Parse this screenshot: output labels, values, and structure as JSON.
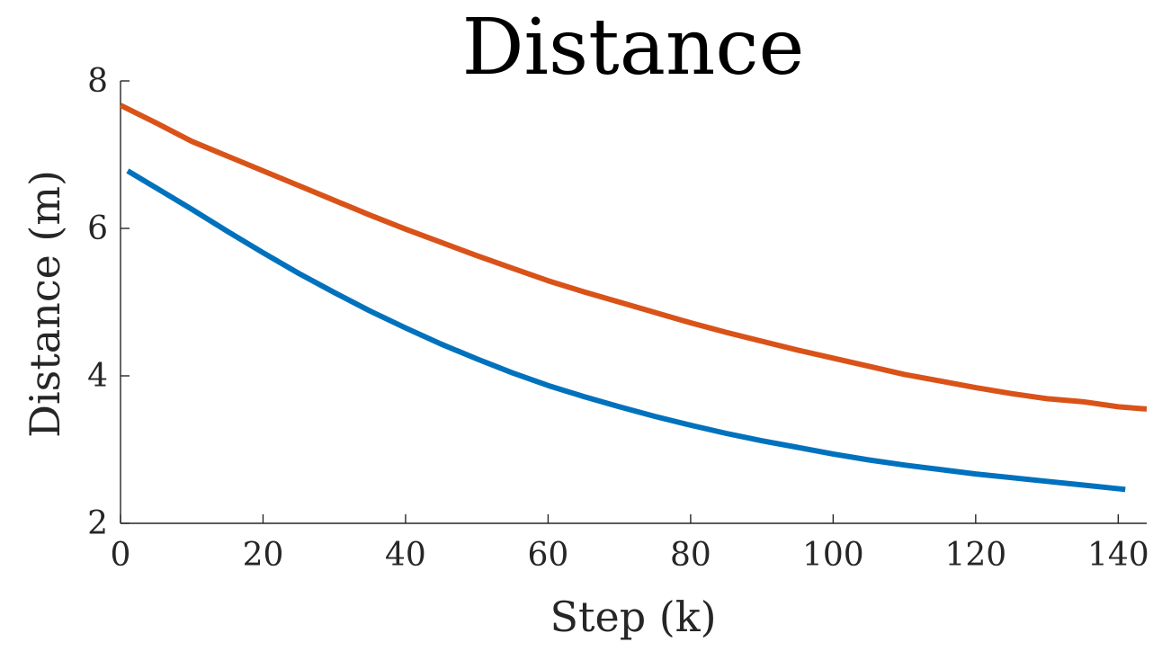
{
  "chart_data": {
    "type": "line",
    "title": "Distance",
    "xlabel": "Step (k)",
    "ylabel": "Distance (m)",
    "xlim": [
      0,
      144
    ],
    "ylim": [
      2,
      8
    ],
    "xticks": [
      0,
      20,
      40,
      60,
      80,
      100,
      120,
      140
    ],
    "yticks": [
      2,
      4,
      6,
      8
    ],
    "grid": false,
    "legend": "none",
    "series": [
      {
        "color": "#0072BD",
        "x": [
          1,
          5,
          10,
          15,
          20,
          25,
          30,
          35,
          40,
          45,
          50,
          55,
          60,
          65,
          70,
          75,
          80,
          85,
          90,
          95,
          100,
          105,
          110,
          115,
          120,
          125,
          130,
          135,
          141
        ],
        "y": [
          6.78,
          6.55,
          6.26,
          5.96,
          5.67,
          5.39,
          5.13,
          4.88,
          4.65,
          4.43,
          4.23,
          4.04,
          3.87,
          3.72,
          3.58,
          3.45,
          3.33,
          3.22,
          3.12,
          3.03,
          2.94,
          2.86,
          2.79,
          2.73,
          2.67,
          2.62,
          2.57,
          2.52,
          2.46
        ]
      },
      {
        "color": "#D95319",
        "x": [
          0,
          5,
          10,
          15,
          20,
          25,
          30,
          35,
          40,
          45,
          50,
          55,
          60,
          65,
          70,
          75,
          80,
          85,
          90,
          95,
          100,
          105,
          110,
          115,
          120,
          125,
          130,
          135,
          140,
          144
        ],
        "y": [
          7.67,
          7.43,
          7.18,
          6.98,
          6.78,
          6.58,
          6.38,
          6.18,
          5.99,
          5.81,
          5.63,
          5.46,
          5.29,
          5.14,
          5.0,
          4.86,
          4.72,
          4.59,
          4.47,
          4.35,
          4.24,
          4.13,
          4.02,
          3.93,
          3.84,
          3.76,
          3.69,
          3.65,
          3.58,
          3.55
        ]
      }
    ]
  }
}
